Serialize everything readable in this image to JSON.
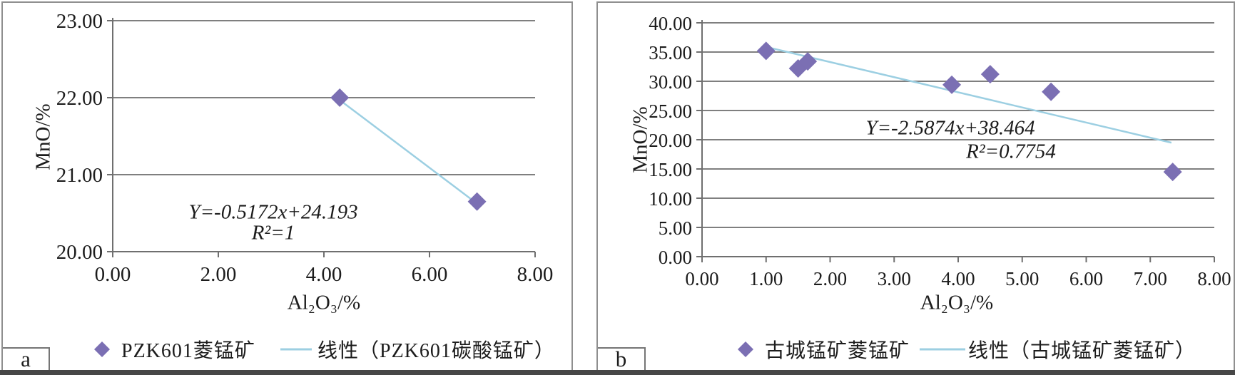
{
  "figure": {
    "bottom_border_color": "#474747",
    "panel_border_color": "#8f8f8f"
  },
  "colors": {
    "marker": "#7b6fb3",
    "trendline": "#9ccfe2",
    "gridline": "#7f7f7f",
    "axis": "#6f6f6f",
    "text": "#1c1c1c"
  },
  "chart_data": [
    {
      "type": "scatter",
      "panel_label": "a",
      "x_title": "Al₂O₃/%",
      "y_title": "MnO/%",
      "xlim": [
        0,
        8
      ],
      "ylim": [
        20,
        23
      ],
      "grid": "horizontal",
      "legend_position": "bottom",
      "x_ticks": {
        "values": [
          0,
          2,
          4,
          6,
          8
        ],
        "labels": [
          "0.00",
          "2.00",
          "4.00",
          "6.00",
          "8.00"
        ]
      },
      "y_ticks": {
        "values": [
          20,
          21,
          22,
          23
        ],
        "labels": [
          "20.00",
          "21.00",
          "22.00",
          "23.00"
        ]
      },
      "points": [
        {
          "x": 4.3,
          "y": 22.0
        },
        {
          "x": 6.9,
          "y": 20.65
        }
      ],
      "trend": {
        "slope": -0.5172,
        "intercept": 24.193,
        "x_start": 4.32,
        "x_end": 6.88
      },
      "equation": "Y=-0.5172x+24.193",
      "r_squared": "R²=1",
      "legend": {
        "series_label": "PZK601菱锰矿",
        "trend_label": "线性（PZK601碳酸锰矿）"
      }
    },
    {
      "type": "scatter",
      "panel_label": "b",
      "x_title": "Al₂O₃/%",
      "y_title": "MnO/%",
      "xlim": [
        0,
        8
      ],
      "ylim": [
        0,
        40
      ],
      "grid": "horizontal",
      "legend_position": "bottom",
      "x_ticks": {
        "values": [
          0,
          1,
          2,
          3,
          4,
          5,
          6,
          7,
          8
        ],
        "labels": [
          "0.00",
          "1.00",
          "2.00",
          "3.00",
          "4.00",
          "5.00",
          "6.00",
          "7.00",
          "8.00"
        ]
      },
      "y_ticks": {
        "values": [
          0,
          5,
          10,
          15,
          20,
          25,
          30,
          35,
          40
        ],
        "labels": [
          "0.00",
          "5.00",
          "10.00",
          "15.00",
          "20.00",
          "25.00",
          "30.00",
          "35.00",
          "40.00"
        ]
      },
      "points": [
        {
          "x": 1.0,
          "y": 35.2
        },
        {
          "x": 1.5,
          "y": 32.2
        },
        {
          "x": 1.65,
          "y": 33.4
        },
        {
          "x": 3.9,
          "y": 29.4
        },
        {
          "x": 4.5,
          "y": 31.2
        },
        {
          "x": 5.45,
          "y": 28.2
        },
        {
          "x": 7.35,
          "y": 14.5
        }
      ],
      "trend": {
        "slope": -2.5874,
        "intercept": 38.464,
        "x_start": 1.05,
        "x_end": 7.33
      },
      "equation": "Y=-2.5874x+38.464",
      "r_squared": "R²=0.7754",
      "legend": {
        "series_label": "古城锰矿菱锰矿",
        "trend_label": "线性（古城锰矿菱锰矿）"
      }
    }
  ]
}
